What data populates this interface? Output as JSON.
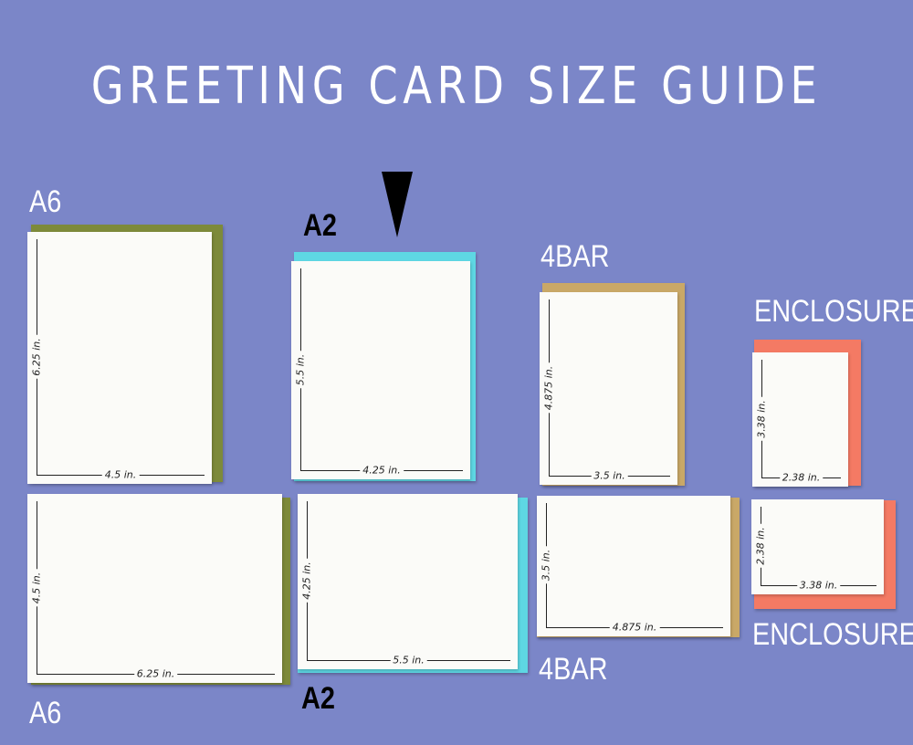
{
  "title": "GREETING CARD SIZE GUIDE",
  "colors": {
    "background": "#7b86c8",
    "a6_envelope": "#7d8a3a",
    "a2_envelope": "#5ed7e3",
    "4bar_envelope": "#c9a867",
    "enclosure_envelope": "#f47a64",
    "card": "#fbfbf8"
  },
  "pointer_icon": "down-triangle-arrow",
  "cards": [
    {
      "label": "A6",
      "orientation": "portrait",
      "height": "6.25 in.",
      "width": "4.5 in.",
      "envelope": "a6_envelope"
    },
    {
      "label": "A2",
      "orientation": "portrait",
      "height": "5.5 in.",
      "width": "4.25 in.",
      "envelope": "a2_envelope"
    },
    {
      "label": "4BAR",
      "orientation": "portrait",
      "height": "4.875 in.",
      "width": "3.5 in.",
      "envelope": "4bar_envelope"
    },
    {
      "label": "ENCLOSURE",
      "orientation": "portrait",
      "height": "3.38 in.",
      "width": "2.38 in.",
      "envelope": "enclosure_envelope"
    },
    {
      "label": "A6",
      "orientation": "landscape",
      "height": "4.5 in.",
      "width": "6.25 in.",
      "envelope": "a6_envelope"
    },
    {
      "label": "A2",
      "orientation": "landscape",
      "height": "4.25 in.",
      "width": "5.5 in.",
      "envelope": "a2_envelope"
    },
    {
      "label": "4BAR",
      "orientation": "landscape",
      "height": "3.5 in.",
      "width": "4.875 in.",
      "envelope": "4bar_envelope"
    },
    {
      "label": "ENCLOSURE",
      "orientation": "landscape",
      "height": "2.38 in.",
      "width": "3.38 in.",
      "envelope": "enclosure_envelope"
    }
  ]
}
